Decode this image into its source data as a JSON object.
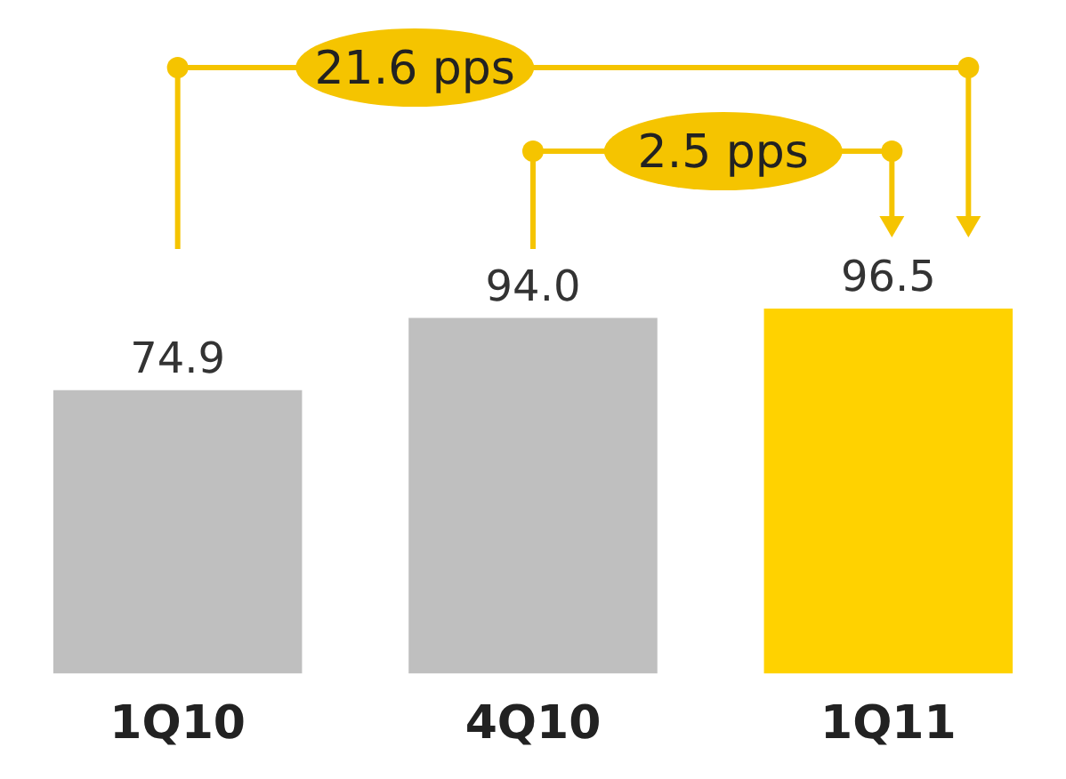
{
  "chart_data": {
    "type": "bar",
    "categories": [
      "1Q10",
      "4Q10",
      "1Q11"
    ],
    "values": [
      74.9,
      94.0,
      96.5
    ],
    "value_labels": [
      "74.9",
      "94.0",
      "96.5"
    ],
    "colors": [
      "#bfbfbf",
      "#bfbfbf",
      "#ffd200"
    ],
    "grid": false,
    "legend": false,
    "annotations": [
      "21.6 pps",
      "2.5 pps"
    ]
  }
}
